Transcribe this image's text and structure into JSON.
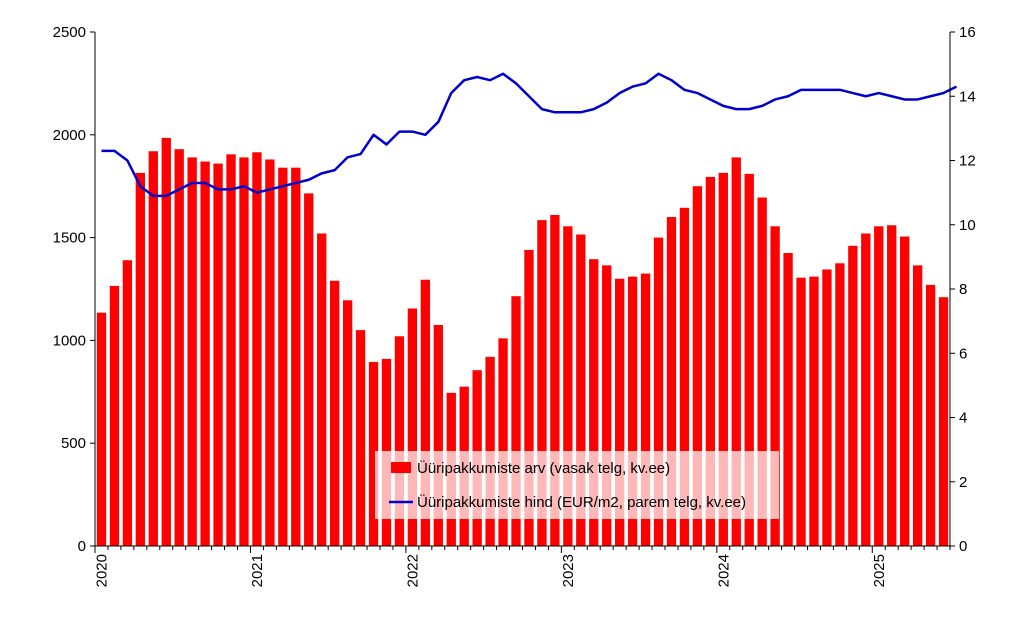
{
  "chart_data": {
    "type": "bar+line",
    "title": "",
    "x_tick_labels": [
      "2020",
      "2021",
      "2022",
      "2023",
      "2024",
      "2025"
    ],
    "y_left": {
      "ylim": [
        0,
        2500
      ],
      "ticks": [
        "0",
        "500",
        "1000",
        "1500",
        "2000",
        "2500"
      ]
    },
    "y_right": {
      "ylim": [
        0,
        16
      ],
      "ticks": [
        "0",
        "2",
        "4",
        "6",
        "8",
        "10",
        "12",
        "14",
        "16"
      ]
    },
    "start_month": "2020-01",
    "series": [
      {
        "name": "Üüripakkumiste arv (vasak telg, kv.ee)",
        "type": "bar",
        "axis": "left",
        "color": "#ff0000",
        "values": [
          1135,
          1265,
          1390,
          1815,
          1920,
          1985,
          1930,
          1890,
          1870,
          1860,
          1905,
          1890,
          1915,
          1880,
          1840,
          1840,
          1715,
          1520,
          1290,
          1195,
          1050,
          895,
          910,
          1020,
          1155,
          1295,
          1075,
          745,
          775,
          855,
          920,
          1010,
          1215,
          1440,
          1585,
          1610,
          1555,
          1515,
          1395,
          1365,
          1300,
          1310,
          1325,
          1500,
          1600,
          1645,
          1750,
          1795,
          1815,
          1890,
          1810,
          1695,
          1555,
          1425,
          1305,
          1310,
          1345,
          1375,
          1460,
          1520,
          1555,
          1560,
          1505,
          1365,
          1270,
          1210
        ]
      },
      {
        "name": "Üüripakkumiste hind (EUR/m2, parem telg, kv.ee)",
        "type": "line",
        "axis": "right",
        "color": "#0000cc",
        "values": [
          12.3,
          12.3,
          12.0,
          11.2,
          10.9,
          10.9,
          11.1,
          11.3,
          11.3,
          11.1,
          11.1,
          11.2,
          11.0,
          11.1,
          11.2,
          11.3,
          11.4,
          11.6,
          11.7,
          12.1,
          12.2,
          12.8,
          12.5,
          12.9,
          12.9,
          12.8,
          13.2,
          14.1,
          14.5,
          14.6,
          14.5,
          14.7,
          14.4,
          14.0,
          13.6,
          13.5,
          13.5,
          13.5,
          13.6,
          13.8,
          14.1,
          14.3,
          14.4,
          14.7,
          14.5,
          14.2,
          14.1,
          13.9,
          13.7,
          13.6,
          13.6,
          13.7,
          13.9,
          14.0,
          14.2,
          14.2,
          14.2,
          14.2,
          14.1,
          14.0,
          14.1,
          14.0,
          13.9,
          13.9,
          14.0,
          14.1,
          14.3
        ]
      }
    ],
    "legend_position": "bottom-center"
  }
}
